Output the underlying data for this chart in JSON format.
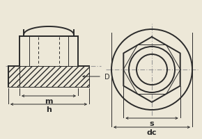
{
  "bg_color": "#ede8d8",
  "line_color": "#2a2a2a",
  "dim_color": "#2a2a2a",
  "centerline_color": "#999999",
  "fig_width": 2.9,
  "fig_height": 2.01,
  "label_D": "D",
  "label_m": "m",
  "label_h": "h",
  "label_s": "s",
  "label_dc": "dc",
  "lw_main": 1.4,
  "lw_thin": 0.7,
  "lw_dim": 0.7
}
